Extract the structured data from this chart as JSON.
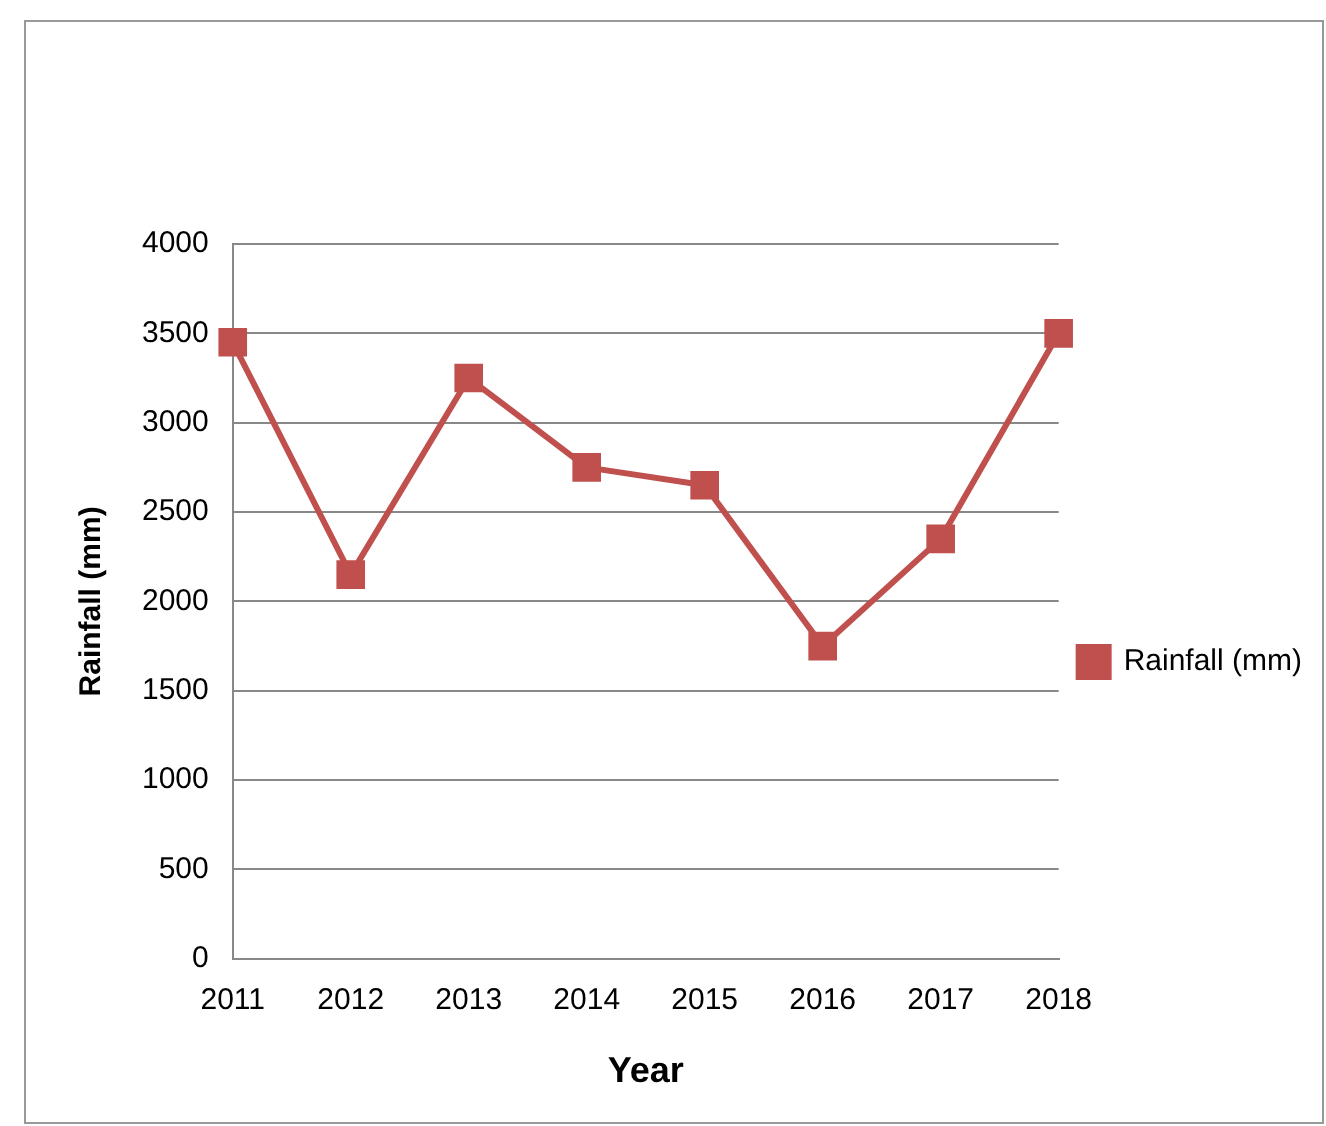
{
  "chart_data": {
    "type": "line",
    "xlabel": "Year",
    "ylabel": "Rainfall (mm)",
    "categories": [
      "2011",
      "2012",
      "2013",
      "2014",
      "2015",
      "2016",
      "2017",
      "2018"
    ],
    "series": [
      {
        "name": "Rainfall (mm)",
        "color": "#c0504d",
        "values": [
          3450,
          2150,
          3250,
          2750,
          2650,
          1750,
          2350,
          3500
        ]
      }
    ],
    "ylim": [
      0,
      4000
    ],
    "yticks": [
      0,
      500,
      1000,
      1500,
      2000,
      2500,
      3000,
      3500,
      4000
    ],
    "grid": "y",
    "legend": "right",
    "marker": "square",
    "line_style": "solid"
  }
}
